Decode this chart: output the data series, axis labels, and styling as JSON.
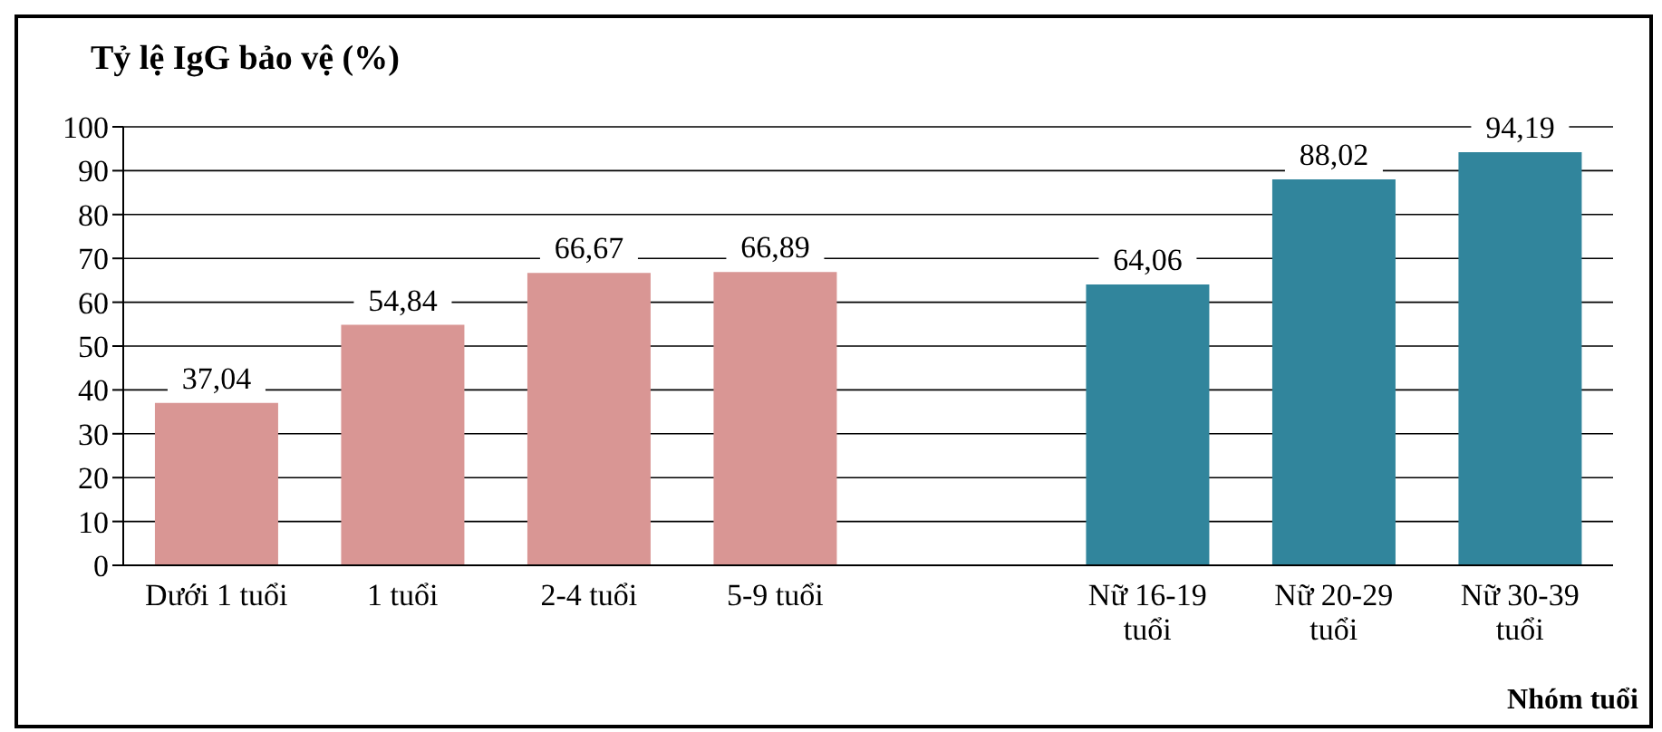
{
  "chart_data": {
    "type": "bar",
    "ylabel": "Tỷ lệ IgG bảo vệ (%)",
    "xlabel": "Nhóm tuổi",
    "categories": [
      "Dưới 1 tuổi",
      "1 tuổi",
      "2-4 tuổi",
      "5-9 tuổi",
      null,
      "Nữ 16-19 tuổi",
      "Nữ 20-29 tuổi",
      "Nữ 30-39 tuổi"
    ],
    "values": [
      37.04,
      54.84,
      66.67,
      66.89,
      null,
      64.06,
      88.02,
      94.19
    ],
    "value_labels": [
      "37,04",
      "54,84",
      "66,67",
      "66,89",
      null,
      "64,06",
      "88,02",
      "94,19"
    ],
    "colors": [
      "#d99694",
      "#d99694",
      "#d99694",
      "#d99694",
      "#d99694",
      "#31859c",
      "#31859c",
      "#31859c"
    ],
    "ylim": [
      0,
      100
    ],
    "yticks": [
      0,
      10,
      20,
      30,
      40,
      50,
      60,
      70,
      80,
      90,
      100
    ],
    "grid": "y"
  }
}
